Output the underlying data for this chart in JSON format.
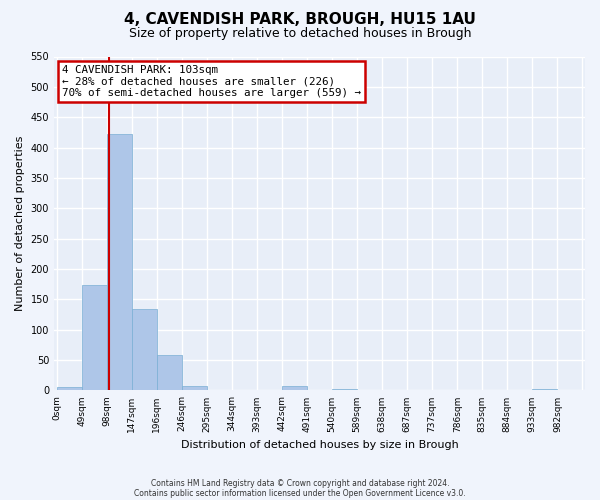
{
  "title": "4, CAVENDISH PARK, BROUGH, HU15 1AU",
  "subtitle": "Size of property relative to detached houses in Brough",
  "xlabel": "Distribution of detached houses by size in Brough",
  "ylabel": "Number of detached properties",
  "bar_color": "#aec6e8",
  "bar_edge_color": "#7aafd4",
  "background_color": "#e8eef8",
  "grid_color": "#ffffff",
  "bin_edges": [
    0,
    49,
    98,
    147,
    196,
    245,
    294,
    343,
    392,
    441,
    490,
    539,
    588,
    637,
    686,
    735,
    784,
    833,
    882,
    931,
    980
  ],
  "bin_labels": [
    "0sqm",
    "49sqm",
    "98sqm",
    "147sqm",
    "196sqm",
    "246sqm",
    "295sqm",
    "344sqm",
    "393sqm",
    "442sqm",
    "491sqm",
    "540sqm",
    "589sqm",
    "638sqm",
    "687sqm",
    "737sqm",
    "786sqm",
    "835sqm",
    "884sqm",
    "933sqm",
    "982sqm"
  ],
  "counts": [
    5,
    174,
    422,
    134,
    58,
    8,
    0,
    0,
    0,
    7,
    0,
    3,
    0,
    0,
    0,
    0,
    0,
    0,
    0,
    3
  ],
  "ylim": [
    0,
    550
  ],
  "yticks": [
    0,
    50,
    100,
    150,
    200,
    250,
    300,
    350,
    400,
    450,
    500,
    550
  ],
  "property_line_x": 103,
  "property_line_color": "#cc0000",
  "annotation_title": "4 CAVENDISH PARK: 103sqm",
  "annotation_line1": "← 28% of detached houses are smaller (226)",
  "annotation_line2": "70% of semi-detached houses are larger (559) →",
  "annotation_box_edgecolor": "#cc0000",
  "fig_bg_color": "#f0f4fc",
  "footnote1": "Contains HM Land Registry data © Crown copyright and database right 2024.",
  "footnote2": "Contains public sector information licensed under the Open Government Licence v3.0."
}
